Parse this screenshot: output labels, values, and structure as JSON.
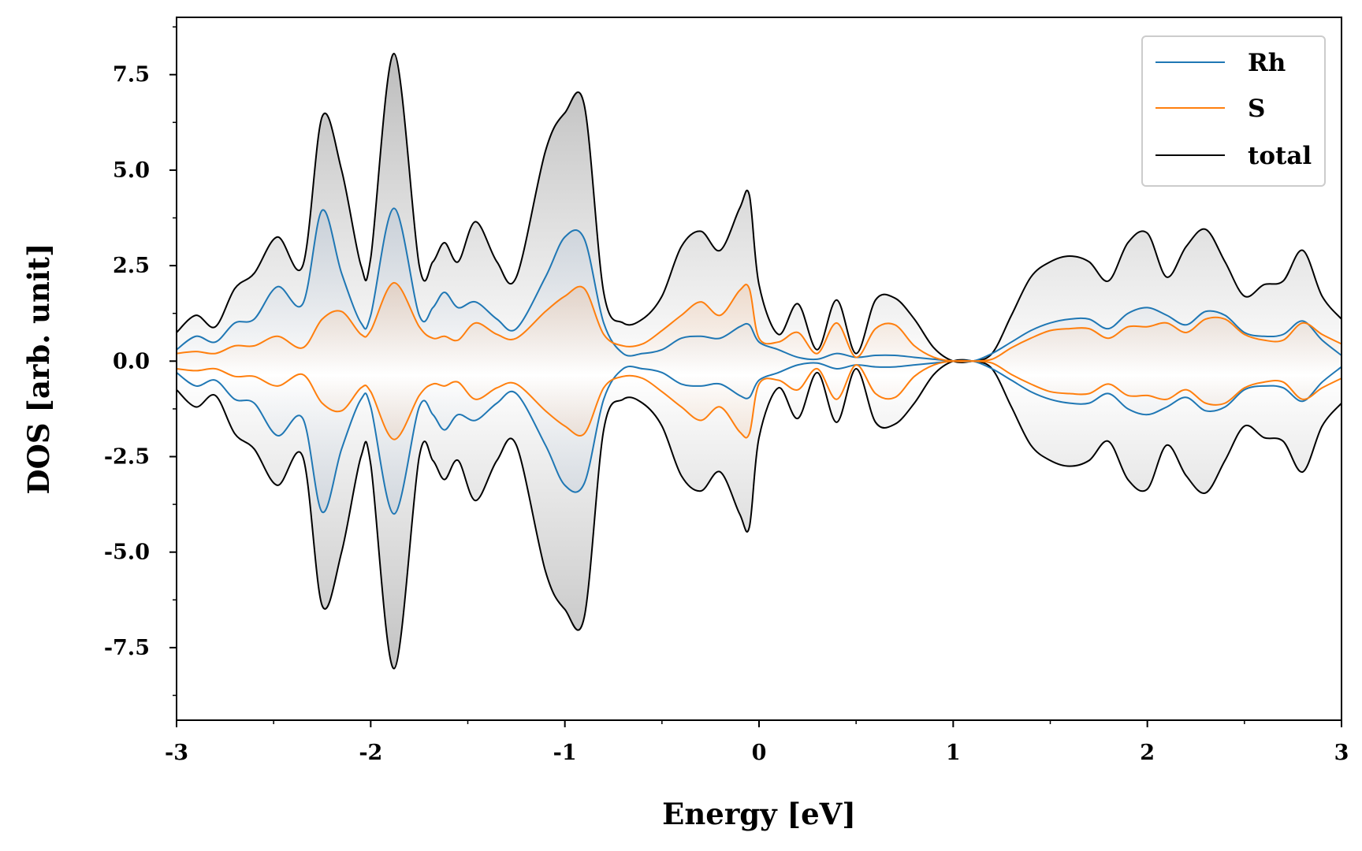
{
  "chart_data": {
    "type": "area",
    "xlabel": "Energy [eV]",
    "ylabel": "DOS [arb. unit]",
    "xlim": [
      -3,
      3
    ],
    "ylim": [
      -9.4,
      9.0
    ],
    "x_ticks": [
      -3,
      -2,
      -1,
      0,
      1,
      2,
      3
    ],
    "x_tick_labels": [
      "-3",
      "-2",
      "-1",
      "0",
      "1",
      "2",
      "3"
    ],
    "y_ticks": [
      -7.5,
      -5.0,
      -2.5,
      0.0,
      2.5,
      5.0,
      7.5
    ],
    "y_tick_labels": [
      "-7.5",
      "-5.0",
      "-2.5",
      "0.0",
      "2.5",
      "5.0",
      "7.5"
    ],
    "mirrored": true,
    "grid": false,
    "legend_position": "top-right",
    "series": [
      {
        "name": "Rh",
        "color": "#1f77b4",
        "x": [
          -3.0,
          -2.9,
          -2.8,
          -2.7,
          -2.6,
          -2.48,
          -2.35,
          -2.25,
          -2.15,
          -2.05,
          -2.0,
          -1.88,
          -1.75,
          -1.68,
          -1.62,
          -1.55,
          -1.46,
          -1.35,
          -1.25,
          -1.1,
          -1.0,
          -0.9,
          -0.8,
          -0.7,
          -0.6,
          -0.5,
          -0.4,
          -0.3,
          -0.2,
          -0.1,
          -0.05,
          0.0,
          0.1,
          0.2,
          0.3,
          0.4,
          0.5,
          0.6,
          0.7,
          0.8,
          0.9,
          1.0,
          1.1,
          1.2,
          1.3,
          1.4,
          1.5,
          1.6,
          1.7,
          1.8,
          1.9,
          2.0,
          2.1,
          2.2,
          2.3,
          2.4,
          2.5,
          2.6,
          2.7,
          2.8,
          2.9,
          3.0
        ],
        "values": [
          0.3,
          0.65,
          0.5,
          1.0,
          1.1,
          1.95,
          1.5,
          3.95,
          2.3,
          1.0,
          1.2,
          4.0,
          1.2,
          1.4,
          1.8,
          1.4,
          1.55,
          1.1,
          0.85,
          2.2,
          3.25,
          3.2,
          1.0,
          0.2,
          0.2,
          0.3,
          0.6,
          0.65,
          0.6,
          0.9,
          0.95,
          0.5,
          0.3,
          0.1,
          0.05,
          0.2,
          0.1,
          0.15,
          0.15,
          0.1,
          0.05,
          0.0,
          0.0,
          0.2,
          0.5,
          0.8,
          1.0,
          1.1,
          1.1,
          0.85,
          1.25,
          1.4,
          1.2,
          0.95,
          1.3,
          1.2,
          0.75,
          0.65,
          0.7,
          1.05,
          0.55,
          0.15
        ]
      },
      {
        "name": "S",
        "color": "#ff7f0e",
        "x": [
          -3.0,
          -2.9,
          -2.8,
          -2.7,
          -2.6,
          -2.48,
          -2.35,
          -2.25,
          -2.15,
          -2.05,
          -2.0,
          -1.88,
          -1.75,
          -1.68,
          -1.62,
          -1.55,
          -1.46,
          -1.35,
          -1.25,
          -1.1,
          -1.0,
          -0.9,
          -0.8,
          -0.7,
          -0.6,
          -0.5,
          -0.4,
          -0.3,
          -0.2,
          -0.1,
          -0.05,
          0.0,
          0.1,
          0.2,
          0.3,
          0.4,
          0.5,
          0.6,
          0.7,
          0.8,
          0.9,
          1.0,
          1.1,
          1.2,
          1.3,
          1.4,
          1.5,
          1.6,
          1.7,
          1.8,
          1.9,
          2.0,
          2.1,
          2.2,
          2.3,
          2.4,
          2.5,
          2.6,
          2.7,
          2.8,
          2.9,
          3.0
        ],
        "values": [
          0.2,
          0.25,
          0.2,
          0.4,
          0.4,
          0.65,
          0.35,
          1.1,
          1.3,
          0.7,
          0.8,
          2.05,
          0.9,
          0.6,
          0.65,
          0.55,
          1.0,
          0.7,
          0.6,
          1.3,
          1.7,
          1.9,
          0.7,
          0.4,
          0.45,
          0.8,
          1.2,
          1.55,
          1.2,
          1.85,
          1.9,
          0.6,
          0.5,
          0.75,
          0.2,
          1.0,
          0.1,
          0.85,
          0.95,
          0.4,
          0.1,
          0.0,
          0.0,
          0.05,
          0.35,
          0.6,
          0.8,
          0.85,
          0.85,
          0.6,
          0.9,
          0.9,
          1.0,
          0.75,
          1.1,
          1.1,
          0.7,
          0.55,
          0.55,
          1.0,
          0.7,
          0.45
        ]
      },
      {
        "name": "total",
        "color": "#000000",
        "x": [
          -3.0,
          -2.9,
          -2.8,
          -2.7,
          -2.6,
          -2.48,
          -2.35,
          -2.25,
          -2.15,
          -2.05,
          -2.0,
          -1.88,
          -1.75,
          -1.68,
          -1.62,
          -1.55,
          -1.46,
          -1.35,
          -1.25,
          -1.1,
          -1.0,
          -0.9,
          -0.8,
          -0.7,
          -0.6,
          -0.5,
          -0.4,
          -0.3,
          -0.2,
          -0.1,
          -0.05,
          0.0,
          0.1,
          0.2,
          0.3,
          0.4,
          0.5,
          0.6,
          0.7,
          0.8,
          0.9,
          1.0,
          1.1,
          1.2,
          1.3,
          1.4,
          1.5,
          1.6,
          1.7,
          1.8,
          1.9,
          2.0,
          2.1,
          2.2,
          2.3,
          2.4,
          2.5,
          2.6,
          2.7,
          2.8,
          2.9,
          3.0
        ],
        "values": [
          0.75,
          1.2,
          0.9,
          1.9,
          2.3,
          3.25,
          2.5,
          6.4,
          5.0,
          2.5,
          2.7,
          8.05,
          2.5,
          2.6,
          3.1,
          2.6,
          3.65,
          2.6,
          2.2,
          5.5,
          6.5,
          6.7,
          1.8,
          1.0,
          1.1,
          1.7,
          3.0,
          3.4,
          2.9,
          4.0,
          4.35,
          2.0,
          0.7,
          1.5,
          0.3,
          1.6,
          0.2,
          1.6,
          1.65,
          1.1,
          0.35,
          0.0,
          0.0,
          0.2,
          1.2,
          2.2,
          2.6,
          2.75,
          2.6,
          2.1,
          3.1,
          3.35,
          2.2,
          3.0,
          3.45,
          2.6,
          1.7,
          2.0,
          2.1,
          2.9,
          1.7,
          1.1
        ]
      }
    ]
  }
}
